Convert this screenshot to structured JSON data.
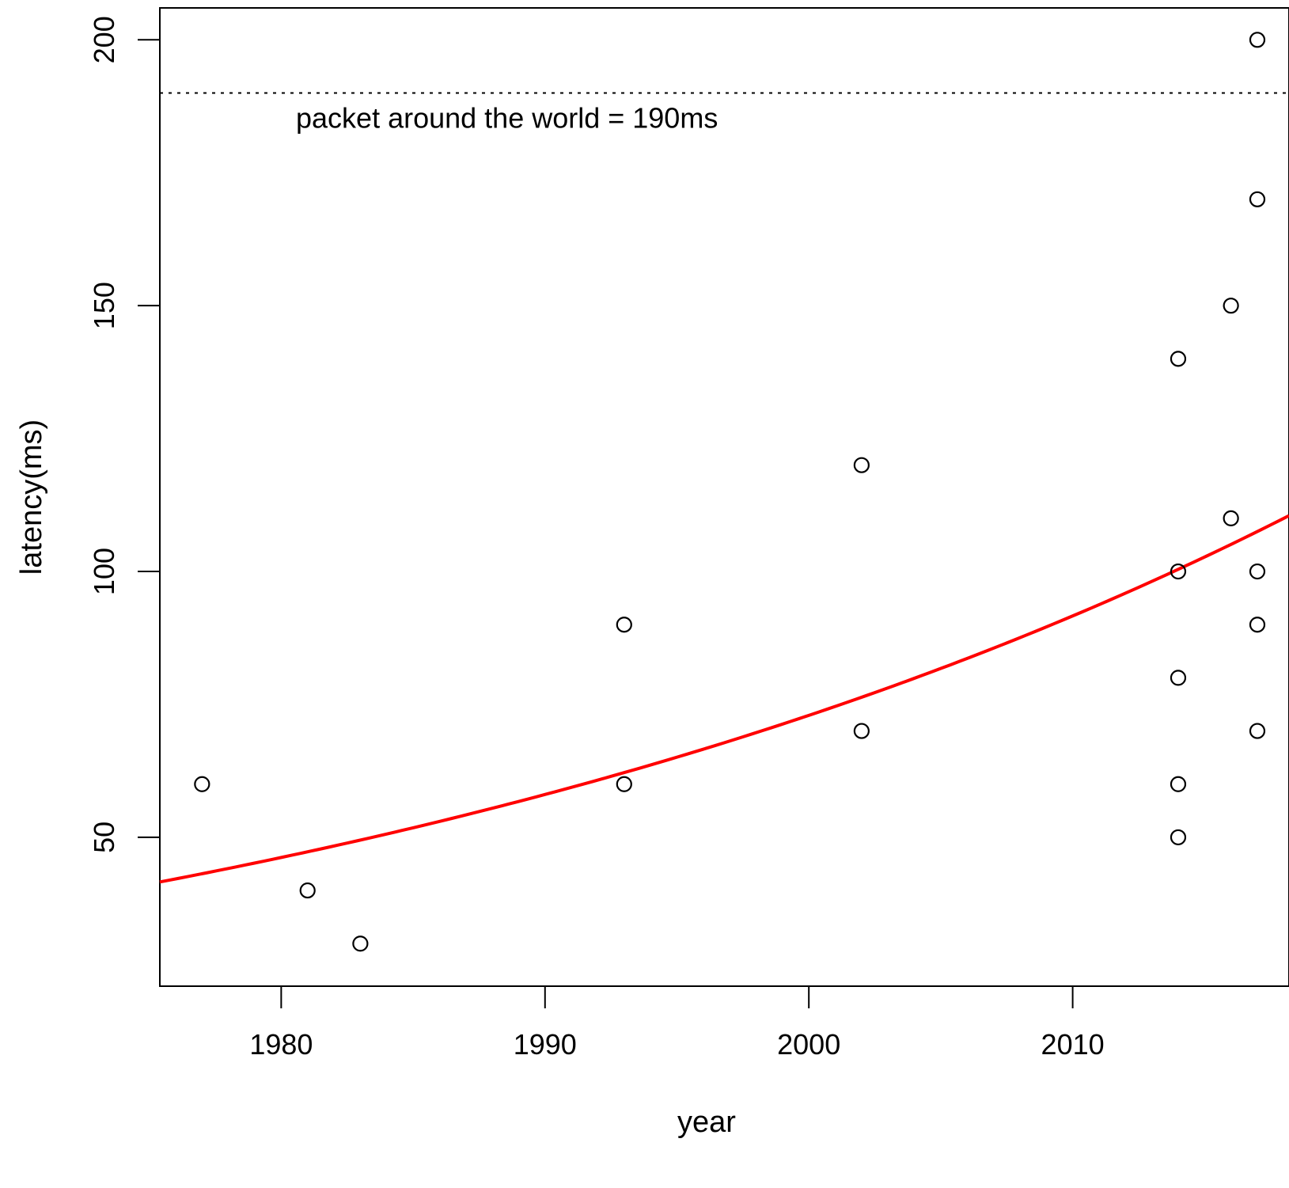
{
  "chart_data": {
    "type": "scatter",
    "xlabel": "year",
    "ylabel": "latency(ms)",
    "xlim": [
      1975.4,
      2018.2
    ],
    "ylim": [
      22,
      206
    ],
    "x_ticks": [
      1980,
      1990,
      2000,
      2010
    ],
    "y_ticks": [
      50,
      100,
      150,
      200
    ],
    "grid": false,
    "legend": "none",
    "points": [
      {
        "x": 1977,
        "y": 60
      },
      {
        "x": 1981,
        "y": 40
      },
      {
        "x": 1983,
        "y": 30
      },
      {
        "x": 1993,
        "y": 90
      },
      {
        "x": 1993,
        "y": 60
      },
      {
        "x": 2002,
        "y": 120
      },
      {
        "x": 2002,
        "y": 70
      },
      {
        "x": 2014,
        "y": 140
      },
      {
        "x": 2014,
        "y": 100
      },
      {
        "x": 2014,
        "y": 80
      },
      {
        "x": 2014,
        "y": 60
      },
      {
        "x": 2014,
        "y": 50
      },
      {
        "x": 2016,
        "y": 150
      },
      {
        "x": 2016,
        "y": 110
      },
      {
        "x": 2017,
        "y": 200
      },
      {
        "x": 2017,
        "y": 170
      },
      {
        "x": 2017,
        "y": 100
      },
      {
        "x": 2017,
        "y": 90
      },
      {
        "x": 2017,
        "y": 70
      }
    ],
    "fit_curve": {
      "type": "exponential",
      "color": "#ff0000",
      "x": [
        1975.4,
        1981,
        1993,
        2002,
        2014,
        2018.2
      ],
      "y": [
        41.6,
        47,
        63,
        76.5,
        100.5,
        110.5
      ]
    },
    "reference_line": {
      "y": 190,
      "style": "dotted",
      "label": "packet around the world = 190ms"
    },
    "colors": {
      "points": "#000000",
      "fit": "#ff0000",
      "axes": "#000000"
    }
  }
}
